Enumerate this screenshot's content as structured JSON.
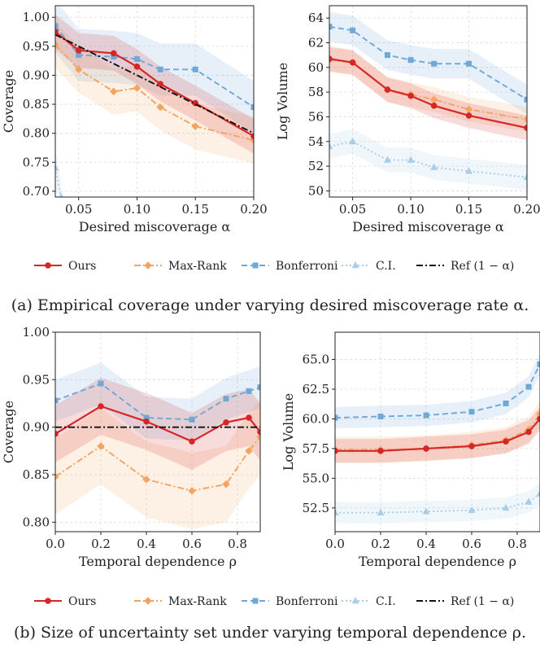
{
  "captions": {
    "a": "(a) Empirical coverage under varying desired miscoverage rate α.",
    "b": "(b) Size of uncertainty set under varying temporal dependence ρ."
  },
  "legend": [
    {
      "label": "Ours",
      "color": "#d62728",
      "dash": "solid",
      "marker": "circle"
    },
    {
      "label": "Max-Rank",
      "color": "#f4a460",
      "dash": "dashdot",
      "marker": "diamond"
    },
    {
      "label": "Bonferroni",
      "color": "#6fa8d6",
      "dash": "dashed",
      "marker": "square"
    },
    {
      "label": "C.I.",
      "color": "#a9cfe8",
      "dash": "dotted",
      "marker": "triangle"
    },
    {
      "label": "Ref (1 − α)",
      "color": "#111111",
      "dash": "dashdot",
      "marker": "none"
    }
  ],
  "chart_data": [
    {
      "id": "a-coverage",
      "type": "line",
      "xlabel": "Desired miscoverage α",
      "ylabel": "Coverage",
      "xlim": [
        0.03,
        0.2
      ],
      "ylim": [
        0.69,
        1.02
      ],
      "xticks": [
        0.05,
        0.1,
        0.15,
        0.2
      ],
      "xtick_labels": [
        "0.05",
        "0.10",
        "0.15",
        "0.20"
      ],
      "yticks": [
        0.7,
        0.75,
        0.8,
        0.85,
        0.9,
        0.95,
        1.0
      ],
      "ytick_labels": [
        "0.70",
        "0.75",
        "0.80",
        "0.85",
        "0.90",
        "0.95",
        "1.00"
      ],
      "grid": true,
      "series": [
        {
          "name": "Bonferroni",
          "x": [
            0.03,
            0.05,
            0.08,
            0.1,
            0.12,
            0.15,
            0.2
          ],
          "y": [
            0.985,
            0.935,
            0.932,
            0.928,
            0.91,
            0.91,
            0.845
          ],
          "band": 0.045
        },
        {
          "name": "Max-Rank",
          "x": [
            0.03,
            0.05,
            0.08,
            0.1,
            0.12,
            0.15,
            0.2
          ],
          "y": [
            0.953,
            0.91,
            0.872,
            0.878,
            0.845,
            0.812,
            0.788
          ],
          "band": 0.04
        },
        {
          "name": "Ours",
          "x": [
            0.03,
            0.05,
            0.08,
            0.1,
            0.12,
            0.15,
            0.2
          ],
          "y": [
            0.975,
            0.943,
            0.938,
            0.915,
            0.885,
            0.852,
            0.795
          ],
          "band": 0.03
        },
        {
          "name": "C.I.",
          "x": [
            0.03,
            0.035
          ],
          "y": [
            0.74,
            0.69
          ],
          "band": 0.03
        },
        {
          "name": "Ref (1 − α)",
          "x": [
            0.03,
            0.2
          ],
          "y": [
            0.97,
            0.8
          ],
          "band": 0
        }
      ]
    },
    {
      "id": "a-volume",
      "type": "line",
      "xlabel": "Desired miscoverage α",
      "ylabel": "Log Volume",
      "xlim": [
        0.03,
        0.2
      ],
      "ylim": [
        49.5,
        65
      ],
      "xticks": [
        0.05,
        0.1,
        0.15,
        0.2
      ],
      "xtick_labels": [
        "0.05",
        "0.10",
        "0.15",
        "0.20"
      ],
      "yticks": [
        50,
        52,
        54,
        56,
        58,
        60,
        62,
        64
      ],
      "ytick_labels": [
        "50",
        "52",
        "54",
        "56",
        "58",
        "60",
        "62",
        "64"
      ],
      "grid": true,
      "series": [
        {
          "name": "Bonferroni",
          "x": [
            0.03,
            0.05,
            0.08,
            0.1,
            0.12,
            0.15,
            0.2
          ],
          "y": [
            63.3,
            63.0,
            61.0,
            60.6,
            60.3,
            60.3,
            57.4
          ],
          "band": 1.2
        },
        {
          "name": "Max-Rank",
          "x": [
            0.03,
            0.05,
            0.08,
            0.1,
            0.12,
            0.15,
            0.2
          ],
          "y": [
            60.6,
            60.4,
            58.2,
            57.8,
            57.4,
            56.6,
            55.8
          ],
          "band": 1.0
        },
        {
          "name": "Ours",
          "x": [
            0.03,
            0.05,
            0.08,
            0.1,
            0.12,
            0.15,
            0.2
          ],
          "y": [
            60.7,
            60.4,
            58.2,
            57.7,
            56.9,
            56.1,
            55.1
          ],
          "band": 1.0
        },
        {
          "name": "C.I.",
          "x": [
            0.03,
            0.05,
            0.08,
            0.1,
            0.12,
            0.15,
            0.2
          ],
          "y": [
            53.6,
            54.0,
            52.5,
            52.5,
            51.9,
            51.6,
            51.1
          ],
          "band": 1.0
        }
      ]
    },
    {
      "id": "b-coverage",
      "type": "line",
      "xlabel": "Temporal dependence ρ",
      "ylabel": "Coverage",
      "xlim": [
        0.0,
        0.9
      ],
      "ylim": [
        0.79,
        1.0
      ],
      "xticks": [
        0.0,
        0.2,
        0.4,
        0.6,
        0.8
      ],
      "xtick_labels": [
        "0.0",
        "0.2",
        "0.4",
        "0.6",
        "0.8"
      ],
      "yticks": [
        0.8,
        0.85,
        0.9,
        0.95,
        1.0
      ],
      "ytick_labels": [
        "0.80",
        "0.85",
        "0.90",
        "0.95",
        "1.00"
      ],
      "grid": true,
      "series": [
        {
          "name": "Bonferroni",
          "x": [
            0.0,
            0.2,
            0.4,
            0.6,
            0.75,
            0.85,
            0.9
          ],
          "y": [
            0.928,
            0.946,
            0.91,
            0.908,
            0.93,
            0.938,
            0.942
          ],
          "band": 0.022
        },
        {
          "name": "Max-Rank",
          "x": [
            0.0,
            0.2,
            0.4,
            0.6,
            0.75,
            0.85,
            0.9
          ],
          "y": [
            0.848,
            0.88,
            0.845,
            0.833,
            0.84,
            0.875,
            0.89
          ],
          "band": 0.04
        },
        {
          "name": "Ours",
          "x": [
            0.0,
            0.2,
            0.4,
            0.6,
            0.75,
            0.85,
            0.9
          ],
          "y": [
            0.893,
            0.922,
            0.906,
            0.885,
            0.905,
            0.91,
            0.895
          ],
          "band": 0.03
        },
        {
          "name": "Ref (1 − α)",
          "x": [
            0.0,
            0.9
          ],
          "y": [
            0.9,
            0.9
          ],
          "band": 0
        }
      ]
    },
    {
      "id": "b-volume",
      "type": "line",
      "xlabel": "Temporal dependence ρ",
      "ylabel": "Log Volume",
      "xlim": [
        0.0,
        0.9
      ],
      "ylim": [
        50.5,
        67.3
      ],
      "xticks": [
        0.0,
        0.2,
        0.4,
        0.6,
        0.8
      ],
      "xtick_labels": [
        "0.0",
        "0.2",
        "0.4",
        "0.6",
        "0.8"
      ],
      "yticks": [
        52.5,
        55.0,
        57.5,
        60.0,
        62.5,
        65.0
      ],
      "ytick_labels": [
        "52.5",
        "55.0",
        "57.5",
        "60.0",
        "62.5",
        "65.0"
      ],
      "grid": true,
      "series": [
        {
          "name": "Bonferroni",
          "x": [
            0.0,
            0.2,
            0.4,
            0.6,
            0.75,
            0.85,
            0.9
          ],
          "y": [
            60.1,
            60.2,
            60.3,
            60.6,
            61.3,
            62.7,
            64.6
          ],
          "band": 0.9
        },
        {
          "name": "Max-Rank",
          "x": [
            0.0,
            0.2,
            0.4,
            0.6,
            0.75,
            0.85,
            0.9
          ],
          "y": [
            57.4,
            57.4,
            57.5,
            57.8,
            58.2,
            59.1,
            60.4
          ],
          "band": 1.1
        },
        {
          "name": "Ours",
          "x": [
            0.0,
            0.2,
            0.4,
            0.6,
            0.75,
            0.85,
            0.9
          ],
          "y": [
            57.3,
            57.3,
            57.5,
            57.7,
            58.1,
            58.9,
            60.0
          ],
          "band": 1.0
        },
        {
          "name": "C.I.",
          "x": [
            0.0,
            0.2,
            0.4,
            0.6,
            0.75,
            0.85,
            0.9
          ],
          "y": [
            52.1,
            52.1,
            52.2,
            52.3,
            52.5,
            53.0,
            53.7
          ],
          "band": 0.9
        }
      ]
    }
  ]
}
